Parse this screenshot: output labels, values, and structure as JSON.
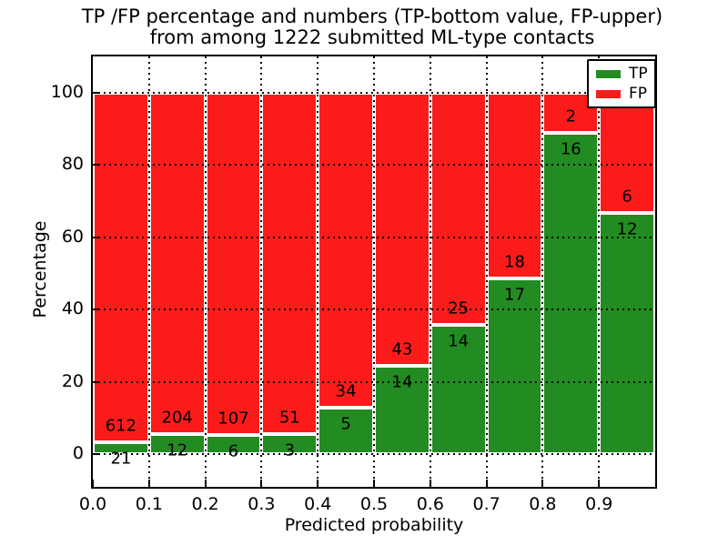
{
  "chart_data": {
    "type": "bar",
    "stacked": true,
    "title_line1": "TP /FP percentage and numbers (TP-bottom value, FP-upper)",
    "title_line2": "from among 1222 submitted ML-type contacts",
    "xlabel": "Predicted probability",
    "ylabel": "Percentage",
    "x_tick_labels": [
      "0.0",
      "0.1",
      "0.2",
      "0.3",
      "0.4",
      "0.5",
      "0.6",
      "0.7",
      "0.8",
      "0.9"
    ],
    "y_ticks": [
      0,
      20,
      40,
      60,
      80,
      100
    ],
    "xlim": [
      0.0,
      1.0
    ],
    "ylim": [
      -9,
      110
    ],
    "bin_width": 0.1,
    "grid": "dotted",
    "bar_totals_note": "each bar normalized to 100%",
    "series": [
      {
        "name": "TP",
        "color": "#228b22",
        "values": [
          21,
          12,
          6,
          3,
          5,
          14,
          14,
          17,
          16,
          12
        ]
      },
      {
        "name": "FP",
        "color": "#fb1b1b",
        "values": [
          612,
          204,
          107,
          51,
          34,
          43,
          25,
          18,
          2,
          6
        ]
      }
    ],
    "legend": {
      "position": "upper right",
      "entries": [
        "TP",
        "FP"
      ]
    }
  },
  "colors": {
    "tp_green": "#228b22",
    "fp_red": "#fb1b1b",
    "axis_black": "#000000",
    "background": "#ffffff"
  }
}
